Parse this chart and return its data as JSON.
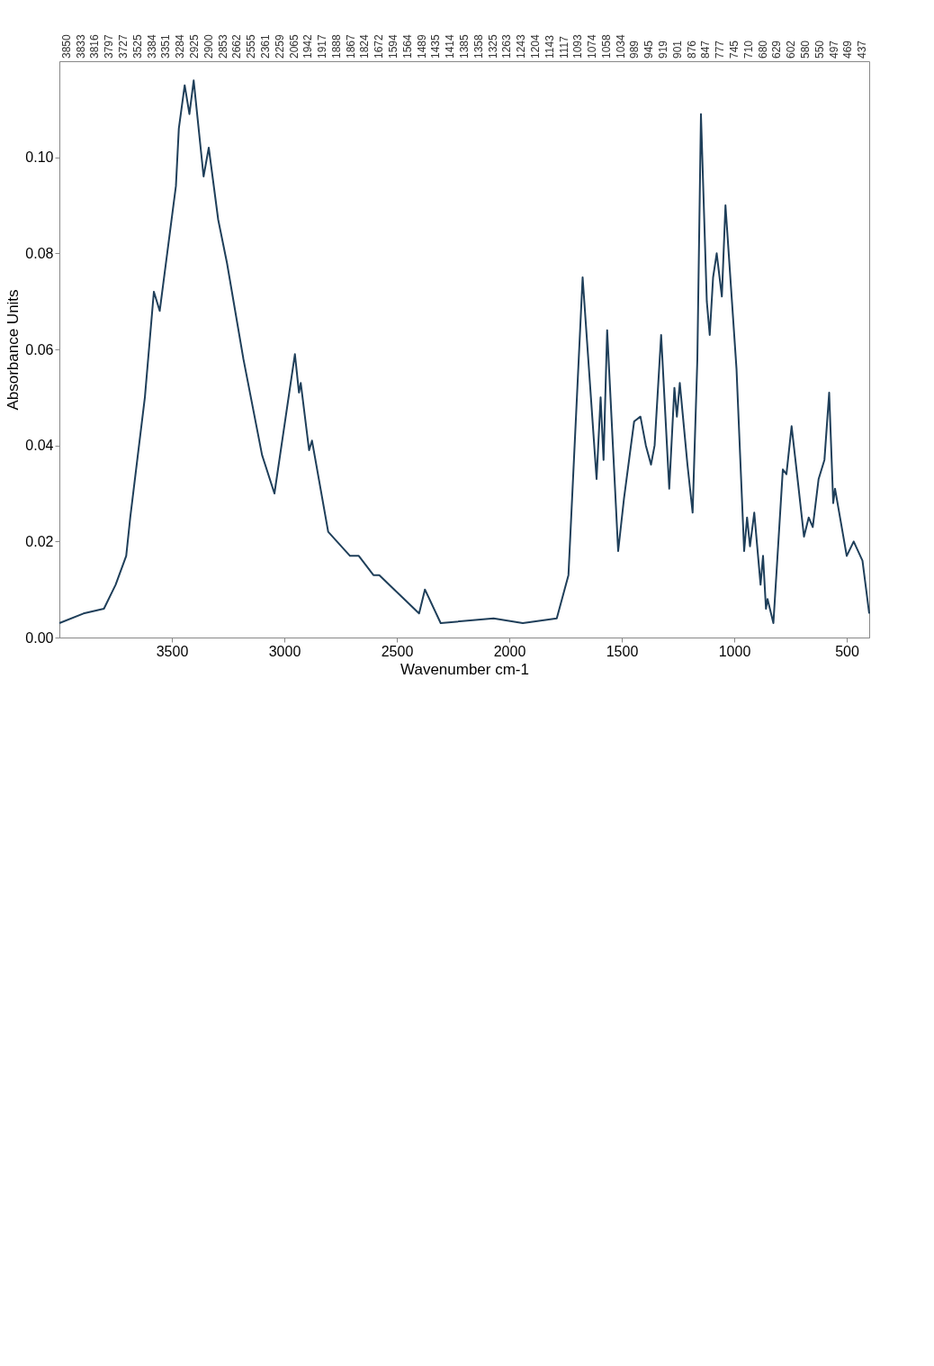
{
  "chart_data": {
    "type": "line",
    "xlabel": "Wavenumber cm-1",
    "ylabel": "Absorbance Units",
    "xlim": [
      4000,
      400
    ],
    "xticks": [
      500,
      1000,
      1500,
      2000,
      2500,
      3000,
      3500
    ],
    "ylim": [
      0,
      0.12
    ],
    "yticks": [
      {
        "value": 0,
        "label": "0.00"
      },
      0.02,
      0.04,
      0.06,
      0.08,
      {
        "value": 0.1,
        "label": "0.10"
      }
    ],
    "grid": false,
    "legend": false,
    "marker": "none",
    "line_style": "solid",
    "annotations": [
      "3850",
      "3833",
      "3816",
      "3797",
      "3727",
      "3525",
      "3384",
      "3351",
      "3284",
      "2925",
      "2900",
      "2853",
      "2662",
      "2555",
      "2361",
      "2259",
      "2065",
      "1942",
      "1917",
      "1888",
      "1867",
      "1824",
      "1672",
      "1594",
      "1564",
      "1489",
      "1435",
      "1414",
      "1385",
      "1358",
      "1325",
      "1263",
      "1243",
      "1204",
      "1143",
      "1117",
      "1093",
      "1074",
      "1058",
      "1034",
      "989",
      "945",
      "919",
      "901",
      "876",
      "847",
      "777",
      "745",
      "710",
      "680",
      "629",
      "602",
      "580",
      "550",
      "497",
      "469",
      "437"
    ],
    "x": [
      400,
      430,
      469,
      500,
      552,
      560,
      578,
      599,
      625,
      651,
      669,
      690,
      716,
      745,
      768,
      784,
      826,
      852,
      859,
      872,
      883,
      911,
      930,
      943,
      956,
      990,
      1039,
      1055,
      1078,
      1094,
      1109,
      1122,
      1148,
      1164,
      1185,
      1208,
      1242,
      1255,
      1266,
      1289,
      1325,
      1354,
      1370,
      1393,
      1417,
      1445,
      1490,
      1516,
      1565,
      1581,
      1594,
      1612,
      1674,
      1737,
      1789,
      1940,
      2070,
      2305,
      2375,
      2401,
      2578,
      2604,
      2669,
      2708,
      2805,
      2877,
      2890,
      2927,
      2935,
      2953,
      3044,
      3099,
      3182,
      3255,
      3294,
      3336,
      3359,
      3403,
      3422,
      3443,
      3469,
      3482,
      3554,
      3580,
      3620,
      3685,
      3703,
      3750,
      3802,
      3893,
      4000
    ],
    "series": [
      {
        "color": "#1f3f5a",
        "values": [
          0.005,
          0.016,
          0.02,
          0.017,
          0.031,
          0.028,
          0.051,
          0.037,
          0.033,
          0.023,
          0.025,
          0.021,
          0.032,
          0.044,
          0.034,
          0.035,
          0.003,
          0.008,
          0.006,
          0.017,
          0.011,
          0.026,
          0.019,
          0.025,
          0.018,
          0.056,
          0.09,
          0.071,
          0.08,
          0.075,
          0.063,
          0.07,
          0.109,
          0.058,
          0.026,
          0.036,
          0.053,
          0.046,
          0.052,
          0.031,
          0.063,
          0.04,
          0.036,
          0.04,
          0.046,
          0.045,
          0.029,
          0.018,
          0.064,
          0.037,
          0.05,
          0.033,
          0.075,
          0.013,
          0.004,
          0.003,
          0.004,
          0.003,
          0.01,
          0.005,
          0.013,
          0.013,
          0.017,
          0.017,
          0.022,
          0.041,
          0.039,
          0.053,
          0.051,
          0.059,
          0.03,
          0.038,
          0.058,
          0.078,
          0.087,
          0.102,
          0.096,
          0.116,
          0.109,
          0.115,
          0.106,
          0.094,
          0.068,
          0.072,
          0.05,
          0.025,
          0.017,
          0.011,
          0.006,
          0.005,
          0.003
        ]
      }
    ]
  }
}
